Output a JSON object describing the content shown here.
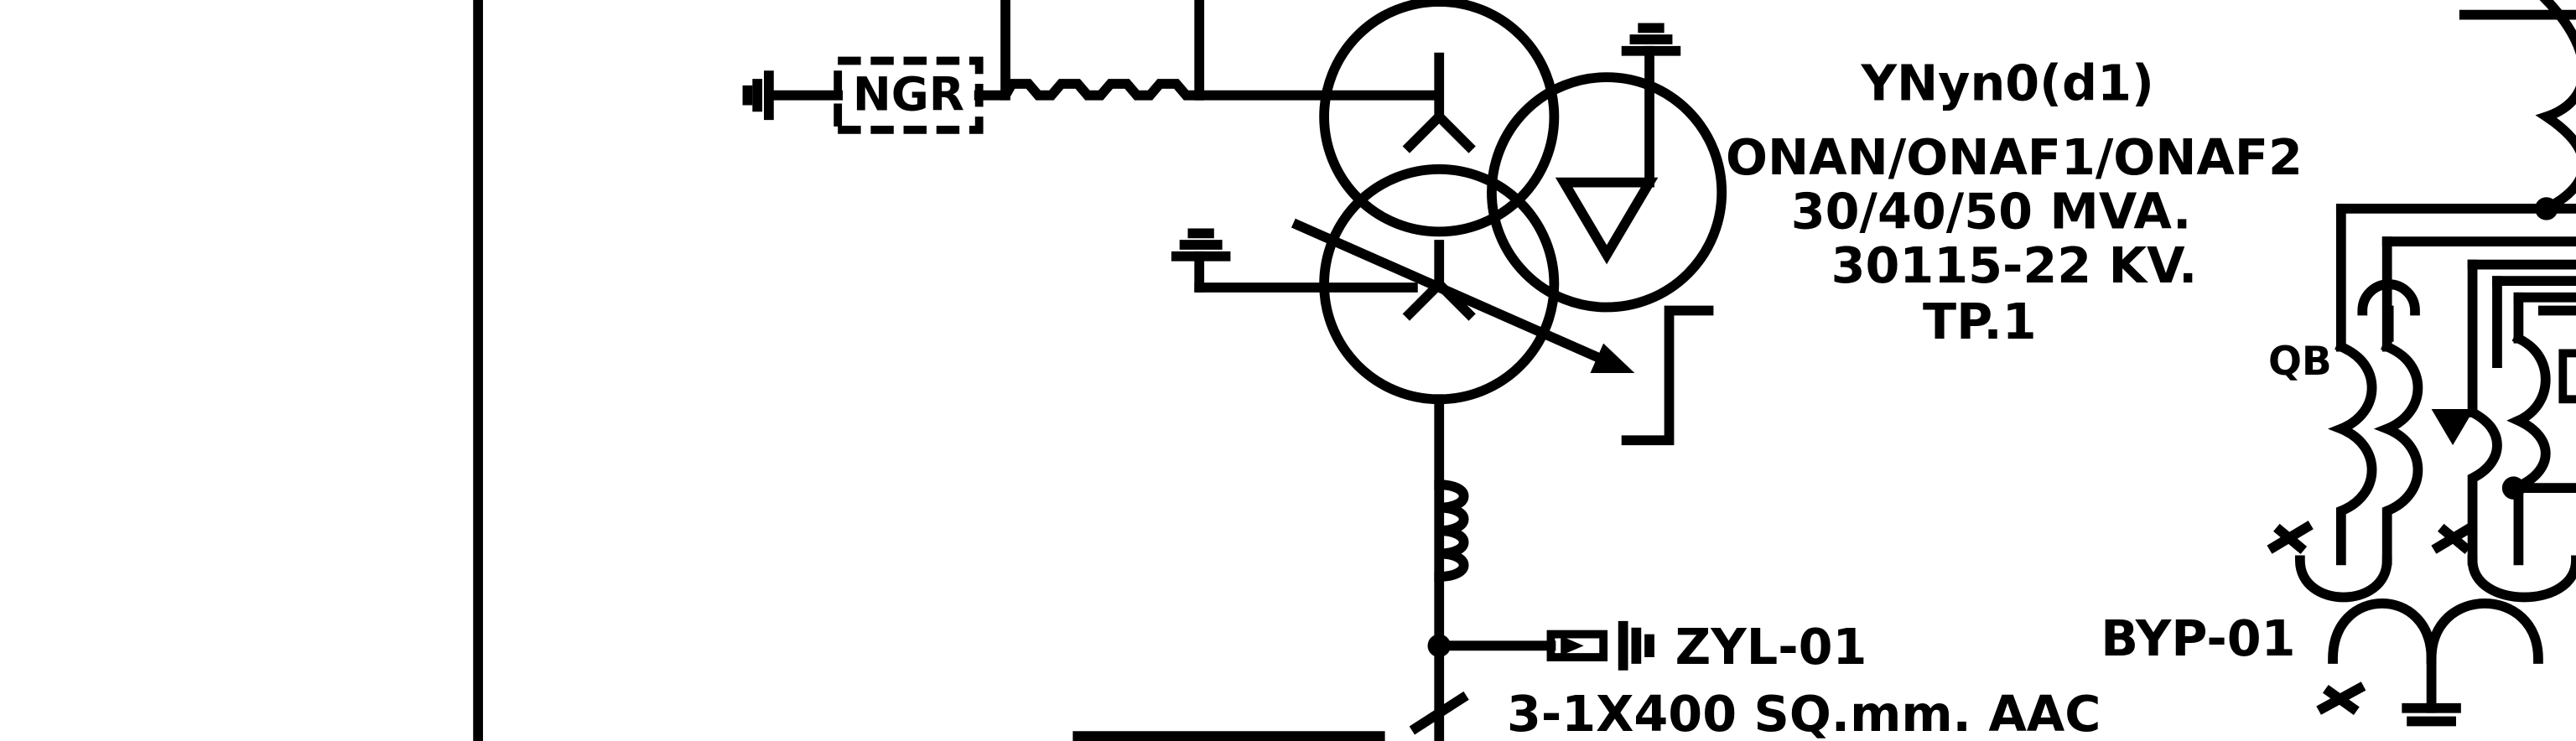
{
  "diagram": {
    "transformer": {
      "tag": "TP.1",
      "voltage": "30115-22 KV.",
      "rating": "30/40/50 MVA.",
      "cooling": "ONAN/ONAF1/ONAF2",
      "vector_group": "YNyn0(d1)"
    },
    "ngr_label": "NGR",
    "surge_arrester": "ZYL-01",
    "cable": "3-1X400 SQ.mm. AAC",
    "bypass": "BYP-01",
    "qb_label": "QB"
  }
}
